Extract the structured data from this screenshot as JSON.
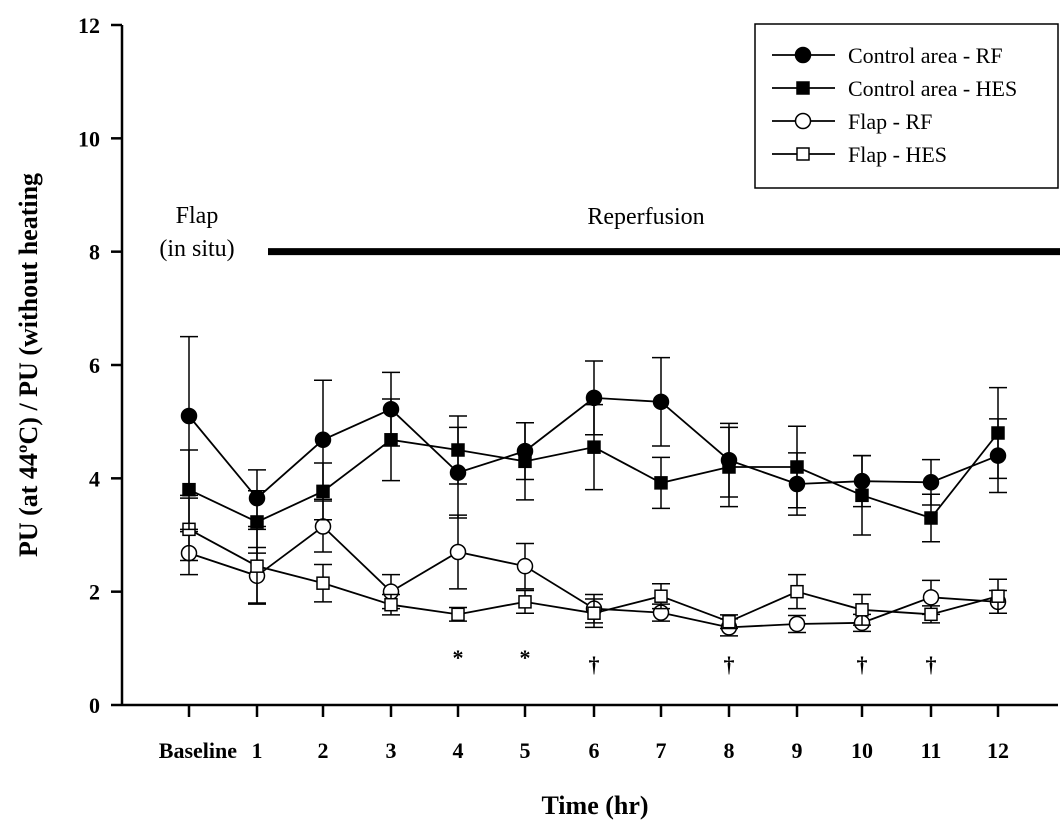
{
  "chart_data": {
    "type": "line",
    "title": "",
    "xlabel": "Time (hr)",
    "ylabel": "PU (at 44ºC) / PU (without heating",
    "categories": [
      "Baseline",
      "1",
      "2",
      "3",
      "4",
      "5",
      "6",
      "7",
      "8",
      "9",
      "10",
      "11",
      "12"
    ],
    "ylim": [
      0,
      12
    ],
    "yticks": [
      "0",
      "2",
      "4",
      "6",
      "8",
      "10",
      "12"
    ],
    "grid": false,
    "legend_position": "top-right",
    "series": [
      {
        "name": "Control area - RF",
        "marker": "filled-circle",
        "values": [
          5.1,
          3.65,
          4.68,
          5.22,
          4.1,
          4.48,
          5.42,
          5.35,
          4.32,
          3.9,
          3.95,
          3.93,
          4.4
        ],
        "error": [
          1.4,
          0.5,
          1.05,
          0.65,
          0.8,
          0.5,
          0.65,
          0.78,
          0.65,
          0.55,
          0.45,
          0.4,
          0.65
        ]
      },
      {
        "name": "Control area - HES",
        "marker": "filled-square",
        "values": [
          3.8,
          3.23,
          3.77,
          4.68,
          4.5,
          4.3,
          4.55,
          3.92,
          4.2,
          4.2,
          3.7,
          3.3,
          4.8
        ],
        "error": [
          0.7,
          0.55,
          0.5,
          0.72,
          0.6,
          0.68,
          0.75,
          0.45,
          0.7,
          0.72,
          0.7,
          0.42,
          0.8
        ]
      },
      {
        "name": "Flap - RF",
        "marker": "open-circle",
        "values": [
          2.68,
          2.28,
          3.15,
          2.0,
          2.7,
          2.45,
          1.7,
          1.63,
          1.37,
          1.43,
          1.45,
          1.9,
          1.82
        ]
      },
      {
        "name": "Flap - HES",
        "marker": "open-square",
        "values": [
          3.1,
          2.45,
          2.15,
          1.77,
          1.6,
          1.82,
          1.62,
          1.92,
          1.47,
          2.0,
          1.68,
          1.6,
          1.92
        ]
      }
    ],
    "flap_err": {
      "Flap - RF": [
        0.38,
        0.5,
        0.45,
        0.3,
        0.65,
        0.4,
        0.25,
        0.15,
        0.15,
        0.15,
        0.15,
        0.3,
        0.2
      ],
      "Flap - HES": [
        0.55,
        0.65,
        0.33,
        0.18,
        0.12,
        0.2,
        0.25,
        0.22,
        0.12,
        0.3,
        0.27,
        0.15,
        0.3
      ]
    },
    "annotations": {
      "phase_label_1": "Flap",
      "phase_label_2": "(in situ)",
      "reperfusion_label": "Reperfusion",
      "reperfusion_bar": {
        "y": 8,
        "from_category": "1"
      },
      "significance": [
        {
          "category": "4",
          "symbol": "*"
        },
        {
          "category": "5",
          "symbol": "*"
        },
        {
          "category": "6",
          "symbol": "†"
        },
        {
          "category": "8",
          "symbol": "†"
        },
        {
          "category": "10",
          "symbol": "†"
        },
        {
          "category": "11",
          "symbol": "†"
        }
      ]
    }
  },
  "colors": {
    "ink": "#000000",
    "background": "#ffffff"
  }
}
